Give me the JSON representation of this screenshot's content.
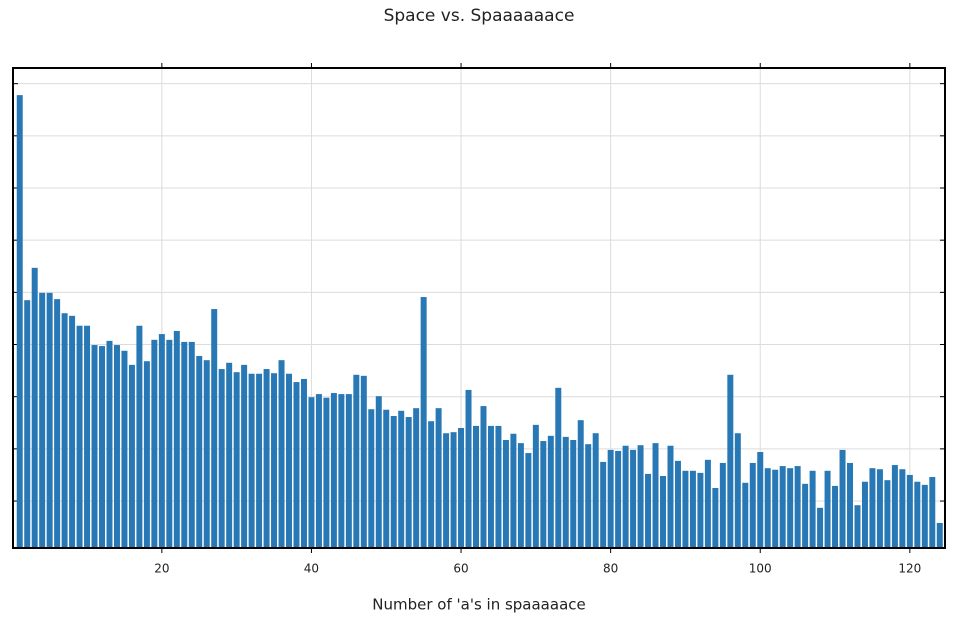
{
  "chart_data": {
    "type": "bar",
    "title": "Space vs. Spaaaaaace",
    "xlabel": "Number of 'a's in spaaaaace",
    "x": [
      1,
      2,
      3,
      4,
      5,
      6,
      7,
      8,
      9,
      10,
      11,
      12,
      13,
      14,
      15,
      16,
      17,
      18,
      19,
      20,
      21,
      22,
      23,
      24,
      25,
      26,
      27,
      28,
      29,
      30,
      31,
      32,
      33,
      34,
      35,
      36,
      37,
      38,
      39,
      40,
      41,
      42,
      43,
      44,
      45,
      46,
      47,
      48,
      49,
      50,
      51,
      52,
      53,
      54,
      55,
      56,
      57,
      58,
      59,
      60,
      61,
      62,
      63,
      64,
      65,
      66,
      67,
      68,
      69,
      70,
      71,
      72,
      73,
      74,
      75,
      76,
      77,
      78,
      79,
      80,
      81,
      82,
      83,
      84,
      85,
      86,
      87,
      88,
      89,
      90,
      91,
      92,
      93,
      94,
      95,
      96,
      97,
      98,
      99,
      100,
      101,
      102,
      103,
      104,
      105,
      106,
      107,
      108,
      109,
      110,
      111,
      112,
      113,
      114,
      115,
      116,
      117,
      118,
      119,
      120,
      121,
      122,
      123,
      124
    ],
    "values": [
      86.8,
      47.5,
      53.7,
      48.9,
      48.9,
      47.7,
      45.0,
      44.5,
      42.6,
      42.6,
      38.9,
      38.7,
      39.7,
      38.9,
      37.8,
      35.1,
      42.6,
      35.8,
      39.9,
      41.0,
      39.9,
      41.6,
      39.5,
      39.5,
      36.8,
      36.0,
      45.8,
      34.3,
      35.5,
      33.7,
      35.1,
      33.4,
      33.4,
      34.3,
      33.5,
      36.0,
      33.4,
      31.8,
      32.4,
      28.9,
      29.5,
      28.8,
      29.7,
      29.5,
      29.5,
      33.2,
      33.0,
      26.6,
      29.1,
      26.5,
      25.3,
      26.3,
      25.1,
      26.8,
      48.1,
      24.3,
      26.8,
      22.0,
      22.2,
      23.0,
      30.3,
      23.4,
      27.2,
      23.4,
      23.4,
      20.7,
      21.9,
      20.1,
      18.2,
      23.6,
      20.5,
      21.5,
      30.7,
      21.3,
      20.7,
      24.5,
      19.9,
      22.0,
      16.5,
      18.8,
      18.6,
      19.6,
      18.8,
      19.7,
      14.2,
      20.1,
      13.8,
      19.6,
      16.7,
      14.8,
      14.8,
      14.4,
      16.9,
      11.5,
      16.3,
      33.2,
      22.0,
      12.5,
      16.3,
      18.4,
      15.3,
      15.0,
      15.7,
      15.3,
      15.7,
      12.3,
      14.8,
      7.7,
      14.8,
      11.9,
      18.8,
      16.3,
      8.2,
      12.7,
      15.3,
      15.1,
      13.0,
      15.9,
      15.1,
      14.0,
      12.7,
      12.1,
      13.6,
      4.8
    ],
    "color": "#2778b4",
    "xlim": [
      0.1,
      124.7
    ],
    "xticks": [
      20,
      40,
      60,
      80,
      100,
      120
    ],
    "ylim": [
      0,
      92
    ],
    "yticks": [
      9,
      19,
      29,
      39,
      49,
      59,
      69,
      79,
      89
    ],
    "grid": true
  }
}
